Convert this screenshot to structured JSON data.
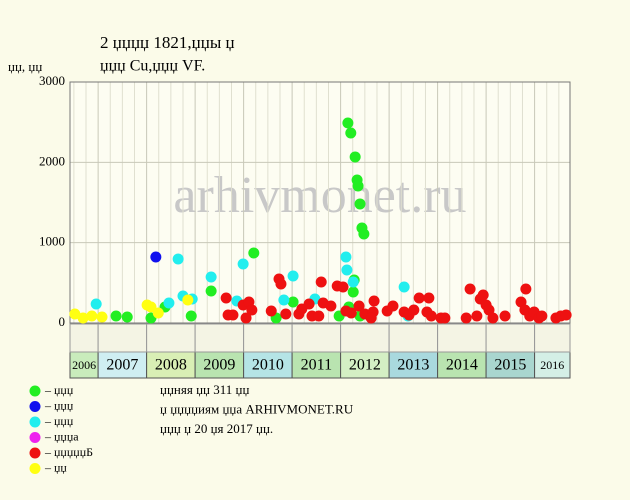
{
  "chart_data": {
    "type": "scatter",
    "title": "2 џџџџ 1821,џџы џ",
    "subtitle": "џџџ Cu,џџџ VF.",
    "y_label": "џџ, џџ",
    "watermark": "arhivmonet.ru",
    "xlim": [
      2006.42,
      2016.73
    ],
    "xticks": [
      2006,
      2007,
      2008,
      2009,
      2010,
      2011,
      2012,
      2013,
      2014,
      2015,
      2016
    ],
    "year_band_colors": [
      "#c9ecbc",
      "#cfeef2",
      "#d9efb5",
      "#b9e4b0",
      "#b5e4e6",
      "#b9e4b0",
      "#d4efc4",
      "#a9d9de",
      "#b9e4b0",
      "#a9d6cf",
      "#d4efe6"
    ],
    "ylim": [
      0,
      3000
    ],
    "yticks": [
      0,
      1000,
      2000,
      3000
    ],
    "grid": true,
    "legend": "bottom-left",
    "notes": [
      "џџняя џџ 311 џџ",
      "џ џџџџиям џџа ARHIVMONET.RU",
      "џџџ џ 20 џя 2017 џџ."
    ],
    "series": [
      {
        "name": "– џџџ",
        "color": "#22ee22",
        "x": [
          2007.37,
          2007.6,
          2008.09,
          2008.38,
          2008.92,
          2009.33,
          2010.21,
          2010.67,
          2011.02,
          2011.97,
          2012.15,
          2012.21,
          2012.3,
          2012.34,
          2012.36,
          2012.4,
          2012.44,
          2012.48,
          2012.26,
          2012.28,
          2012.17,
          2012.4
        ],
        "values": [
          87,
          75,
          62,
          199,
          87,
          398,
          871,
          62,
          261,
          87,
          2490,
          2365,
          2067,
          1780,
          1706,
          1482,
          1183,
          1108,
          386,
          535,
          199,
          87
        ]
      },
      {
        "name": "– џџџ",
        "color": "#1010ee",
        "x": [
          2008.19
        ],
        "values": [
          822
        ]
      },
      {
        "name": "– џџџ",
        "color": "#22eeee",
        "x": [
          2006.96,
          2008.46,
          2008.65,
          2008.75,
          2008.94,
          2009.33,
          2009.86,
          2009.99,
          2010.83,
          2011.02,
          2011.47,
          2012.11,
          2012.13,
          2012.26,
          2013.31,
          2013.39
        ],
        "values": [
          237,
          249,
          797,
          336,
          299,
          573,
          274,
          735,
          286,
          585,
          299,
          822,
          660,
          510,
          448,
          87
        ]
      },
      {
        "name": "– џџџа",
        "color": "#ee22ee",
        "x": [],
        "values": []
      },
      {
        "name": "– џџџџџБ",
        "color": "#ee1111",
        "x": [
          2009.64,
          2009.68,
          2009.78,
          2009.99,
          2010.11,
          2010.17,
          2010.05,
          2010.57,
          2010.73,
          2010.77,
          2010.87,
          2011.14,
          2011.2,
          2011.35,
          2011.41,
          2011.55,
          2011.6,
          2011.64,
          2011.8,
          2011.93,
          2012.05,
          2012.11,
          2012.22,
          2012.38,
          2012.5,
          2012.67,
          2012.69,
          2012.63,
          2012.96,
          2013.08,
          2013.31,
          2013.41,
          2013.51,
          2013.62,
          2013.78,
          2013.82,
          2013.87,
          2014.07,
          2014.15,
          2014.59,
          2014.67,
          2014.81,
          2014.88,
          2014.94,
          2015.0,
          2015.06,
          2015.14,
          2015.39,
          2015.72,
          2015.8,
          2015.82,
          2015.9,
          2015.99,
          2016.09,
          2016.15,
          2016.44,
          2016.54,
          2016.65
        ],
        "values": [
          311,
          100,
          100,
          224,
          261,
          162,
          62,
          149,
          548,
          486,
          112,
          112,
          174,
          237,
          87,
          87,
          510,
          249,
          212,
          461,
          448,
          149,
          125,
          212,
          112,
          137,
          274,
          62,
          149,
          212,
          137,
          100,
          162,
          311,
          137,
          311,
          87,
          62,
          62,
          62,
          423,
          87,
          299,
          349,
          224,
          162,
          62,
          87,
          261,
          162,
          423,
          87,
          137,
          62,
          87,
          62,
          87,
          100
        ]
      },
      {
        "name": "– џџ",
        "color": "#ffff11",
        "x": [
          2006.52,
          2006.69,
          2006.87,
          2007.08,
          2008.01,
          2008.09,
          2008.24,
          2008.85
        ],
        "values": [
          112,
          62,
          87,
          75,
          224,
          199,
          125,
          286
        ]
      }
    ]
  }
}
